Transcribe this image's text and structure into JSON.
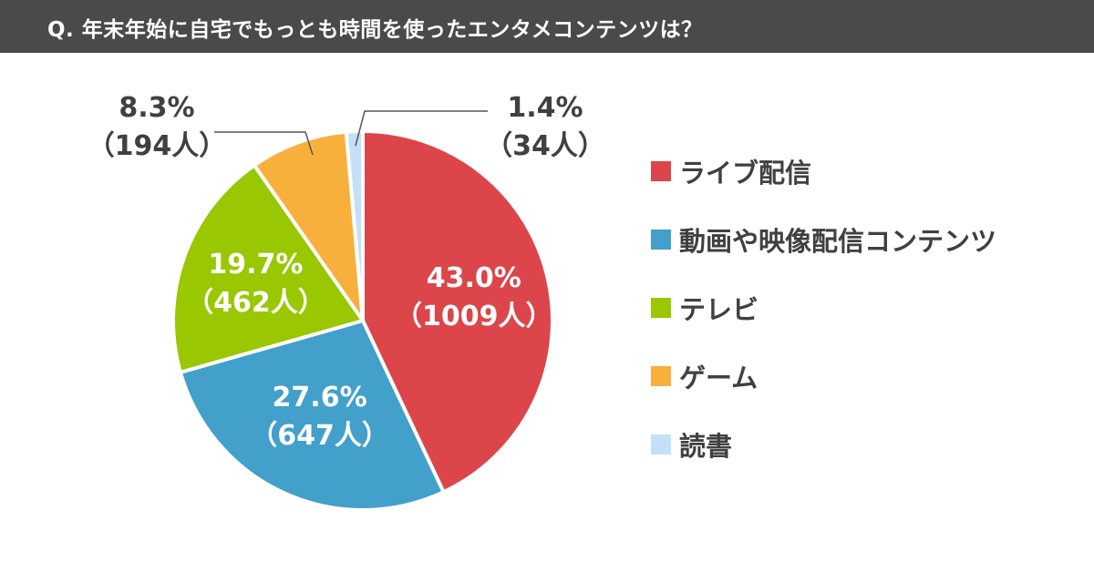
{
  "header": {
    "title": "Q. 年末年始に自宅でもっとも時間を使ったエンタメコンテンツは？"
  },
  "colors": {
    "header_bg": "#4a4a4a",
    "text": "#404040",
    "leader_line": "#555555"
  },
  "chart_data": {
    "type": "pie",
    "title": "Q. 年末年始に自宅でもっとも時間を使ったエンタメコンテンツは？",
    "legend_placement": "right",
    "slices": [
      {
        "name": "ライブ配信",
        "value": 43.0,
        "percent_label": "43.0%",
        "count_label": "（1009人）",
        "color": "#dc4549"
      },
      {
        "name": "動画や映像配信コンテンツ",
        "value": 27.6,
        "percent_label": "27.6%",
        "count_label": "（647人）",
        "color": "#42a0ca"
      },
      {
        "name": "テレビ",
        "value": 19.7,
        "percent_label": "19.7%",
        "count_label": "（462人）",
        "color": "#99c700"
      },
      {
        "name": "ゲーム",
        "value": 8.3,
        "percent_label": "8.3%",
        "count_label": "（194人）",
        "color": "#f8b03d"
      },
      {
        "name": "読書",
        "value": 1.4,
        "percent_label": "1.4%",
        "count_label": "（34人）",
        "color": "#c4dff8"
      }
    ]
  }
}
